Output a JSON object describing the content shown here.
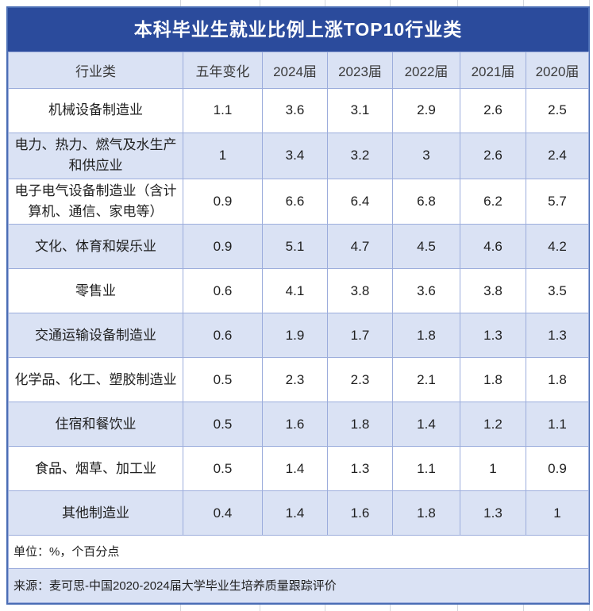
{
  "chart_data": {
    "type": "table",
    "title": "本科毕业生就业比例上涨TOP10行业类",
    "columns": [
      "行业类",
      "五年变化",
      "2024届",
      "2023届",
      "2022届",
      "2021届",
      "2020届"
    ],
    "rows": [
      [
        "机械设备制造业",
        "1.1",
        "3.6",
        "3.1",
        "2.9",
        "2.6",
        "2.5"
      ],
      [
        "电力、热力、燃气及水生产和供应业",
        "1",
        "3.4",
        "3.2",
        "3",
        "2.6",
        "2.4"
      ],
      [
        "电子电气设备制造业（含计算机、通信、家电等）",
        "0.9",
        "6.6",
        "6.4",
        "6.8",
        "6.2",
        "5.7"
      ],
      [
        "文化、体育和娱乐业",
        "0.9",
        "5.1",
        "4.7",
        "4.5",
        "4.6",
        "4.2"
      ],
      [
        "零售业",
        "0.6",
        "4.1",
        "3.8",
        "3.6",
        "3.8",
        "3.5"
      ],
      [
        "交通运输设备制造业",
        "0.6",
        "1.9",
        "1.7",
        "1.8",
        "1.3",
        "1.3"
      ],
      [
        "化学品、化工、塑胶制造业",
        "0.5",
        "2.3",
        "2.3",
        "2.1",
        "1.8",
        "1.8"
      ],
      [
        "住宿和餐饮业",
        "0.5",
        "1.6",
        "1.8",
        "1.4",
        "1.2",
        "1.1"
      ],
      [
        "食品、烟草、加工业",
        "0.5",
        "1.4",
        "1.3",
        "1.1",
        "1",
        "0.9"
      ],
      [
        "其他制造业",
        "0.4",
        "1.4",
        "1.6",
        "1.8",
        "1.3",
        "1"
      ]
    ],
    "unit_note": "单位：%，个百分点",
    "source_note": "来源：麦可思-中国2020-2024届大学毕业生培养质量跟踪评价",
    "layout_hints": {
      "banding": "alternating white and light-blue rows, header and even rows tinted",
      "title_position": "top bar, centered, white bold text on dark blue"
    }
  },
  "colors": {
    "title_bg": "#2B4B9C",
    "band_bg": "#DAE2F4",
    "grid_line": "#9CADDC",
    "outer_border": "#4A6DB5"
  }
}
